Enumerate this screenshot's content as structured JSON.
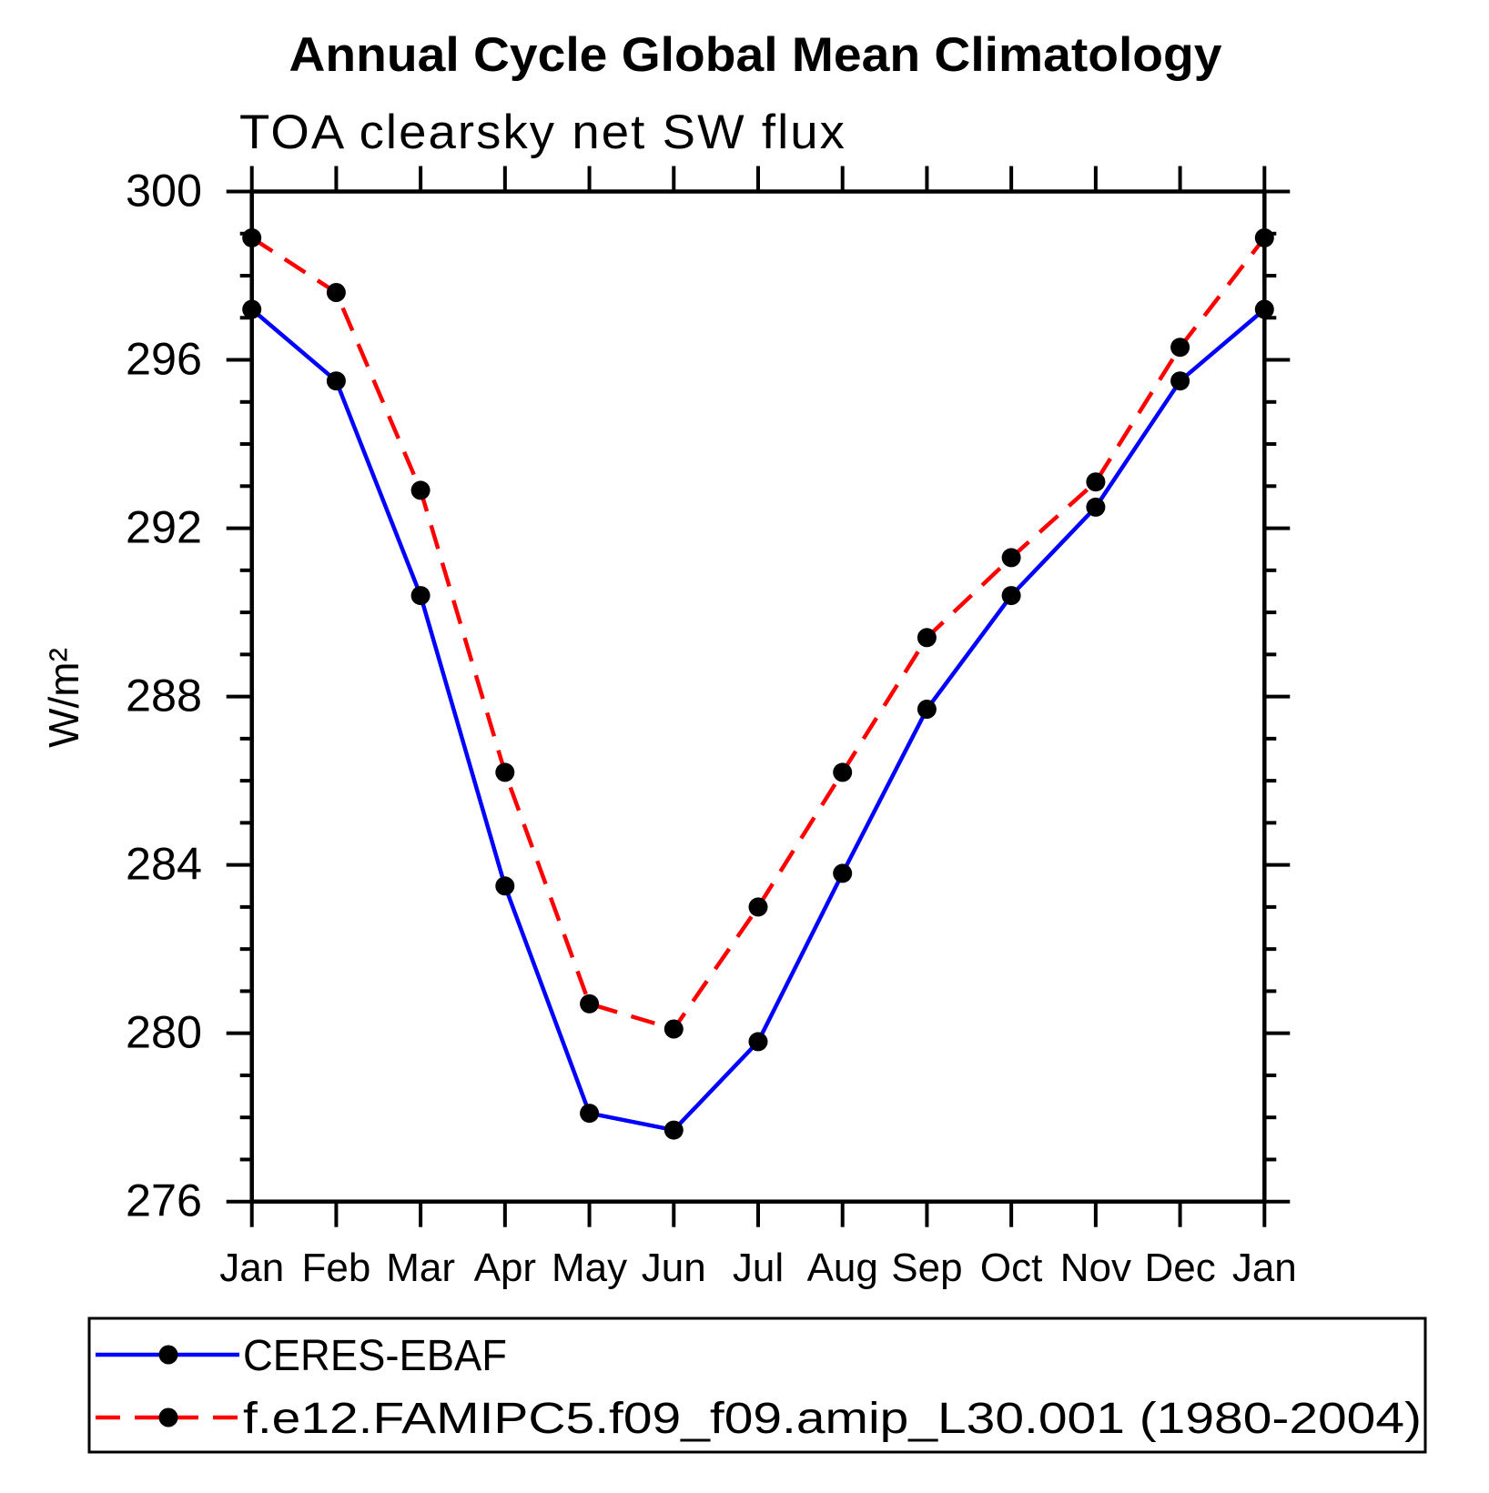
{
  "chart_data": {
    "type": "line",
    "title": "Annual Cycle Global Mean Climatology",
    "subtitle": "TOA clearsky net SW flux",
    "ylabel": "W/m²",
    "x_categories": [
      "Jan",
      "Feb",
      "Mar",
      "Apr",
      "May",
      "Jun",
      "Jul",
      "Aug",
      "Sep",
      "Oct",
      "Nov",
      "Dec",
      "Jan"
    ],
    "ylim": [
      276,
      300
    ],
    "y_major_ticks": [
      276,
      280,
      284,
      288,
      292,
      296,
      300
    ],
    "y_minor_step": 1,
    "grid": false,
    "legend_position": "bottom",
    "axis_color": "#000000",
    "marker_color": "#000000",
    "series": [
      {
        "name": "CERES-EBAF",
        "color": "#0000ff",
        "style": "solid",
        "marker": "circle",
        "values": [
          297.2,
          295.5,
          290.4,
          283.5,
          278.1,
          277.7,
          279.8,
          283.8,
          287.7,
          290.4,
          292.5,
          295.5,
          297.2
        ]
      },
      {
        "name": "f.e12.FAMIPC5.f09_f09.amip_L30.001 (1980-2004)",
        "color": "#ff0000",
        "style": "dashed",
        "marker": "circle",
        "values": [
          298.9,
          297.6,
          292.9,
          286.2,
          280.7,
          280.1,
          283.0,
          286.2,
          289.4,
          291.3,
          293.1,
          296.3,
          298.9
        ]
      }
    ]
  }
}
